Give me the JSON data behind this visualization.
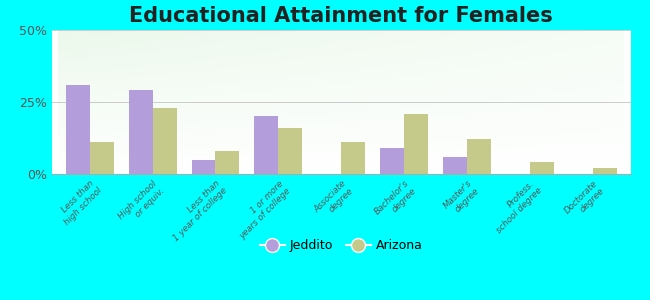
{
  "title": "Educational Attainment for Females",
  "categories": [
    "Less than\nhigh school",
    "High school\nor equiv.",
    "Less than\n1 year of college",
    "1 or more\nyears of college",
    "Associate\ndegree",
    "Bachelor's\ndegree",
    "Master's\ndegree",
    "Profess.\nschool degree",
    "Doctorate\ndegree"
  ],
  "jeddito": [
    31,
    29,
    5,
    20,
    0,
    9,
    6,
    0,
    0
  ],
  "arizona": [
    11,
    23,
    8,
    16,
    11,
    21,
    12,
    4,
    2
  ],
  "jeddito_color": "#b39ddb",
  "arizona_color": "#c5c98a",
  "background_color": "#00ffff",
  "ylim": [
    0,
    50
  ],
  "yticks": [
    0,
    25,
    50
  ],
  "ytick_labels": [
    "0%",
    "25%",
    "50%"
  ],
  "title_fontsize": 15,
  "legend_labels": [
    "Jeddito",
    "Arizona"
  ],
  "bar_width": 0.38
}
